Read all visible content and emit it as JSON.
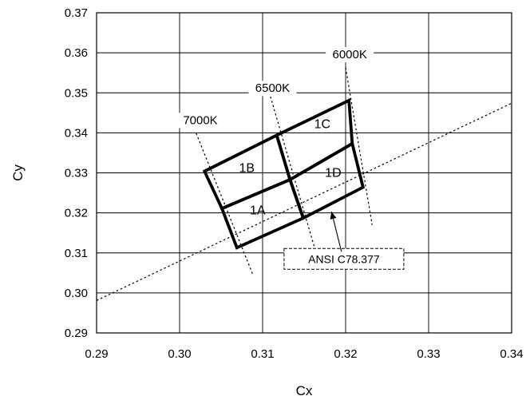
{
  "chart_data": {
    "type": "scatter",
    "title": "",
    "xlabel": "Cx",
    "ylabel": "Cy",
    "xlim": [
      0.29,
      0.34
    ],
    "ylim": [
      0.29,
      0.37
    ],
    "grid": true,
    "x_ticks": [
      "0.29",
      "0.30",
      "0.31",
      "0.32",
      "0.33",
      "0.34"
    ],
    "y_ticks": [
      "0.29",
      "0.30",
      "0.31",
      "0.32",
      "0.33",
      "0.34",
      "0.35",
      "0.36",
      "0.37"
    ],
    "regions": [
      {
        "label": "1A",
        "polygon": [
          [
            0.3051,
            0.3211
          ],
          [
            0.3133,
            0.3283
          ],
          [
            0.3149,
            0.3187
          ],
          [
            0.3069,
            0.3113
          ]
        ],
        "label_at": [
          0.3094,
          0.3196
        ]
      },
      {
        "label": "1B",
        "polygon": [
          [
            0.303,
            0.3304
          ],
          [
            0.3117,
            0.3394
          ],
          [
            0.3133,
            0.3283
          ],
          [
            0.3051,
            0.3211
          ]
        ],
        "label_at": [
          0.3081,
          0.3302
        ]
      },
      {
        "label": "1C",
        "polygon": [
          [
            0.3117,
            0.3394
          ],
          [
            0.3204,
            0.3481
          ],
          [
            0.3208,
            0.3373
          ],
          [
            0.3133,
            0.3283
          ]
        ],
        "label_at": [
          0.3172,
          0.3412
        ]
      },
      {
        "label": "1D",
        "polygon": [
          [
            0.3133,
            0.3283
          ],
          [
            0.3208,
            0.3373
          ],
          [
            0.3221,
            0.3264
          ],
          [
            0.3149,
            0.3187
          ]
        ],
        "label_at": [
          0.3185,
          0.329
        ]
      }
    ],
    "isotherms": [
      {
        "label": "7000K",
        "from": [
          0.302,
          0.3399
        ],
        "to": [
          0.3088,
          0.3047
        ],
        "label_at": [
          0.3025,
          0.3422
        ]
      },
      {
        "label": "6500K",
        "from": [
          0.3108,
          0.3501
        ],
        "to": [
          0.3165,
          0.3096
        ],
        "label_at": [
          0.3112,
          0.3502
        ]
      },
      {
        "label": "6000K",
        "from": [
          0.32,
          0.3563
        ],
        "to": [
          0.3232,
          0.317
        ],
        "label_at": [
          0.3205,
          0.3586
        ]
      }
    ],
    "planckian_locus": [
      [
        0.29,
        0.2981
      ],
      [
        0.34,
        0.3474
      ]
    ],
    "annotation": {
      "text": "ANSI C78.377",
      "box_at": [
        0.3198,
        0.3085
      ],
      "arrow_from": [
        0.3195,
        0.3103
      ],
      "arrow_to": [
        0.3183,
        0.3203
      ]
    }
  }
}
